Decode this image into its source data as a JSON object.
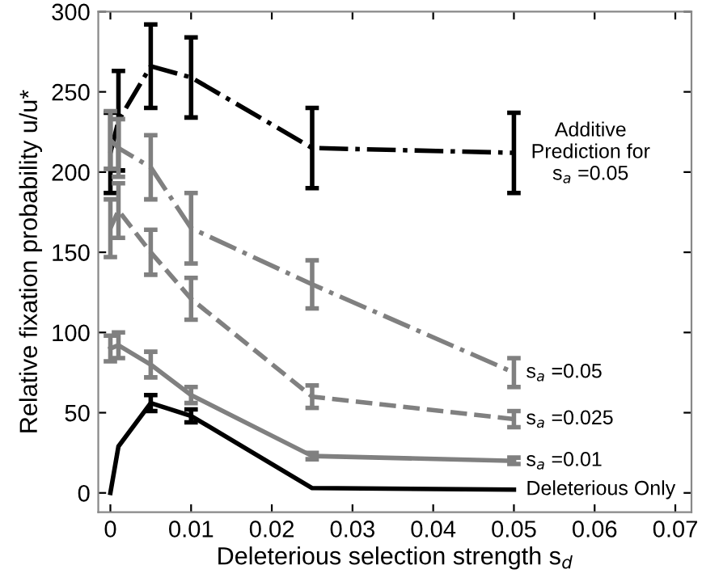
{
  "chart_data": {
    "type": "line",
    "xlabel": "Deleterious selection strength s$_{d}$",
    "ylabel": "Relative fixation probability u/u*",
    "x": [
      0,
      0.001,
      0.005,
      0.01,
      0.025,
      0.05
    ],
    "series": [
      {
        "name": "Additive\nPrediction for\ns$_{a}$ =0.05",
        "color": "#000000",
        "line_style": "dashdot",
        "values": [
          212,
          232,
          266,
          259,
          215,
          212
        ],
        "errors": [
          25,
          31,
          26,
          25,
          25,
          25
        ]
      },
      {
        "name": "s$_{a}$ =0.05",
        "color": "#808080",
        "line_style": "dashdot",
        "values": [
          220,
          215,
          203,
          165,
          130,
          75
        ],
        "errors": [
          18,
          18,
          20,
          22,
          15,
          9
        ]
      },
      {
        "name": "s$_{a}$ =0.025",
        "color": "#808080",
        "line_style": "dashed",
        "values": [
          165,
          176,
          150,
          121,
          60,
          46
        ],
        "errors": [
          18,
          17,
          14,
          13,
          7,
          5
        ]
      },
      {
        "name": "s$_{a}$ =0.01",
        "color": "#808080",
        "line_style": "solid",
        "values": [
          90,
          92,
          80,
          61,
          23,
          20
        ],
        "errors": [
          8,
          8,
          8,
          5,
          2,
          2
        ]
      },
      {
        "name": "Deleterious Only",
        "color": "#000000",
        "line_style": "solid",
        "values": [
          0,
          29,
          56,
          48,
          3,
          2
        ],
        "errors": [
          null,
          null,
          5,
          4,
          null,
          null
        ]
      }
    ],
    "xlim": [
      -0.0015,
      0.072
    ],
    "xticks": [
      0,
      0.01,
      0.02,
      0.03,
      0.04,
      0.05,
      0.06,
      0.07
    ],
    "ylim": [
      -12,
      300
    ],
    "yticks": [
      0,
      50,
      100,
      150,
      200,
      250,
      300
    ],
    "grid": false,
    "legend": "right"
  }
}
